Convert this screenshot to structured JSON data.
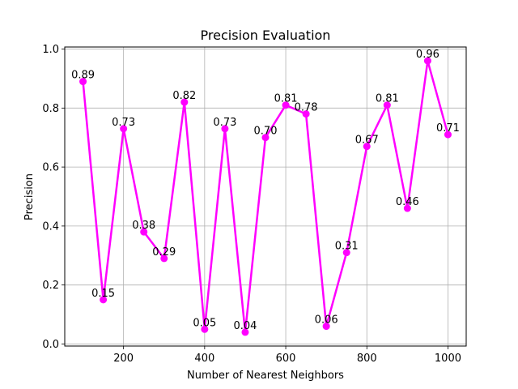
{
  "chart_data": {
    "type": "line",
    "title": "Precision Evaluation",
    "xlabel": "Number of Nearest Neighbors",
    "ylabel": "Precision",
    "xlim": [
      55,
      1045
    ],
    "ylim": [
      -0.007,
      1.007
    ],
    "xticks": [
      200,
      400,
      600,
      800,
      1000
    ],
    "yticks": [
      0.0,
      0.2,
      0.4,
      0.6,
      0.8,
      1.0
    ],
    "ytick_labels": [
      "0.0",
      "0.2",
      "0.4",
      "0.6",
      "0.8",
      "1.0"
    ],
    "grid": true,
    "series": [
      {
        "color": "#ff00ff",
        "marker": "circle",
        "x": [
          100,
          150,
          200,
          250,
          300,
          350,
          400,
          450,
          500,
          550,
          600,
          650,
          700,
          750,
          800,
          850,
          900,
          950,
          1000
        ],
        "values": [
          0.89,
          0.15,
          0.73,
          0.38,
          0.29,
          0.82,
          0.05,
          0.73,
          0.04,
          0.7,
          0.81,
          0.78,
          0.06,
          0.31,
          0.67,
          0.81,
          0.46,
          0.96,
          0.71
        ],
        "labels": [
          "0.89",
          "0.15",
          "0.73",
          "0.38",
          "0.29",
          "0.82",
          "0.05",
          "0.73",
          "0.04",
          "0.70",
          "0.81",
          "0.78",
          "0.06",
          "0.31",
          "0.67",
          "0.81",
          "0.46",
          "0.96",
          "0.71"
        ]
      }
    ]
  }
}
